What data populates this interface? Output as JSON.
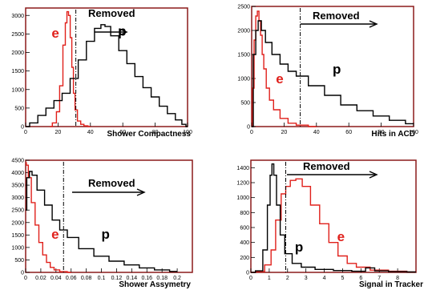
{
  "colors": {
    "frame": "#8b1a1a",
    "electron": "#e0201b",
    "proton": "#000000"
  },
  "chart_data": [
    {
      "type": "histogram",
      "xlabel": "Shower Compactness",
      "xlim": [
        0,
        100
      ],
      "ylim": [
        0,
        3200
      ],
      "xticks": [
        0,
        20,
        40,
        60,
        80,
        100
      ],
      "yticks": [
        0,
        500,
        1000,
        1500,
        2000,
        2500,
        3000
      ],
      "ytick_labels": [
        "0",
        "500",
        "1000",
        "1500",
        "2000",
        "2500",
        "3000"
      ],
      "cut": 31,
      "removed_text": "Removed",
      "series": [
        {
          "name": "e",
          "color": "#e0201b",
          "x": [
            15,
            18,
            20,
            22,
            24,
            25,
            26,
            27,
            28,
            29,
            30,
            31,
            33,
            35,
            37,
            40
          ],
          "y": [
            0,
            100,
            400,
            1100,
            2200,
            2800,
            3100,
            3000,
            2400,
            1600,
            900,
            450,
            150,
            60,
            20,
            0
          ]
        },
        {
          "name": "p",
          "color": "#000000",
          "x": [
            0,
            5,
            10,
            15,
            20,
            25,
            30,
            35,
            40,
            45,
            48,
            50,
            55,
            60,
            65,
            70,
            75,
            80,
            85,
            90,
            95,
            98,
            100
          ],
          "y": [
            0,
            100,
            300,
            500,
            700,
            900,
            1300,
            1800,
            2300,
            2650,
            2750,
            2700,
            2450,
            2050,
            1700,
            1350,
            1050,
            800,
            550,
            350,
            180,
            60,
            0
          ]
        }
      ],
      "series_labels": {
        "e": {
          "x": 16,
          "y": 2400
        },
        "p": {
          "x": 57,
          "y": 2450
        }
      }
    },
    {
      "type": "histogram",
      "xlabel": "Hits in ACD",
      "xlim": [
        0,
        100
      ],
      "ylim": [
        0,
        2500
      ],
      "xticks": [
        0,
        20,
        40,
        60,
        80,
        100
      ],
      "yticks": [
        0,
        500,
        1000,
        1500,
        2000,
        2500
      ],
      "ytick_labels": [
        "0",
        "500",
        "1000",
        "1500",
        "2000",
        "2500"
      ],
      "cut": 30,
      "removed_text": "Removed",
      "series": [
        {
          "name": "e",
          "color": "#e0201b",
          "x": [
            0,
            1,
            2,
            3,
            4,
            5,
            6,
            7,
            8,
            10,
            12,
            15,
            20,
            25,
            30,
            40
          ],
          "y": [
            0,
            800,
            1800,
            2300,
            2400,
            2200,
            1900,
            1500,
            1200,
            800,
            550,
            350,
            170,
            70,
            30,
            0
          ]
        },
        {
          "name": "p",
          "color": "#000000",
          "x": [
            0,
            2,
            3,
            5,
            7,
            10,
            15,
            20,
            25,
            30,
            40,
            50,
            60,
            70,
            80,
            90,
            100
          ],
          "y": [
            0,
            1500,
            2000,
            2200,
            2000,
            1750,
            1500,
            1300,
            1150,
            1050,
            850,
            650,
            450,
            330,
            220,
            130,
            60
          ]
        }
      ],
      "series_labels": {
        "e": {
          "x": 15,
          "y": 900
        },
        "p": {
          "x": 50,
          "y": 1100
        }
      }
    },
    {
      "type": "histogram",
      "xlabel": "Shower Assymetry",
      "xlim": [
        0,
        0.22
      ],
      "ylim": [
        0,
        4500
      ],
      "xticks": [
        0,
        0.02,
        0.04,
        0.06,
        0.08,
        0.1,
        0.12,
        0.14,
        0.16,
        0.18,
        0.2
      ],
      "yticks": [
        0,
        500,
        1000,
        1500,
        2000,
        2500,
        3000,
        3500,
        4000,
        4500
      ],
      "ytick_labels": [
        "0",
        "500",
        "1000",
        "1500",
        "2000",
        "2500",
        "3000",
        "3500",
        "4000",
        "4500"
      ],
      "cut": 0.05,
      "removed_text": "Removed",
      "series": [
        {
          "name": "e",
          "color": "#e0201b",
          "x": [
            0,
            0.002,
            0.005,
            0.01,
            0.015,
            0.02,
            0.025,
            0.03,
            0.035,
            0.04,
            0.05,
            0.06
          ],
          "y": [
            4400,
            4300,
            3800,
            2800,
            1900,
            1200,
            700,
            400,
            200,
            100,
            30,
            0
          ]
        },
        {
          "name": "p",
          "color": "#000000",
          "x": [
            0,
            0.003,
            0.007,
            0.01,
            0.02,
            0.03,
            0.04,
            0.05,
            0.06,
            0.08,
            0.1,
            0.12,
            0.14,
            0.16,
            0.18,
            0.2
          ],
          "y": [
            2500,
            3800,
            4050,
            3900,
            3300,
            2700,
            2100,
            1700,
            1400,
            950,
            650,
            450,
            300,
            180,
            100,
            40
          ]
        }
      ],
      "series_labels": {
        "e": {
          "x": 0.034,
          "y": 1350
        },
        "p": {
          "x": 0.1,
          "y": 1350
        }
      }
    },
    {
      "type": "histogram",
      "xlabel": "Signal in Tracker",
      "xlim": [
        0,
        9
      ],
      "ylim": [
        0,
        1500
      ],
      "xticks": [
        0,
        1,
        2,
        3,
        4,
        5,
        6,
        7,
        8
      ],
      "yticks": [
        0,
        200,
        400,
        600,
        800,
        1000,
        1200,
        1400
      ],
      "ytick_labels": [
        "0",
        "200",
        "400",
        "600",
        "800",
        "1000",
        "1200",
        "1400"
      ],
      "cut": 1.9,
      "removed_text": "Removed",
      "series": [
        {
          "name": "e",
          "color": "#e0201b",
          "x": [
            0,
            0.5,
            1,
            1.2,
            1.5,
            1.8,
            2,
            2.3,
            2.6,
            3,
            3.5,
            4,
            4.5,
            5,
            5.5,
            6,
            7,
            8,
            9
          ],
          "y": [
            0,
            10,
            100,
            300,
            700,
            1050,
            1150,
            1230,
            1250,
            1150,
            900,
            650,
            400,
            220,
            120,
            70,
            30,
            15,
            5
          ]
        },
        {
          "name": "p",
          "color": "#000000",
          "x": [
            0,
            0.5,
            0.8,
            1,
            1.1,
            1.2,
            1.3,
            1.5,
            1.7,
            2,
            2.5,
            3,
            4,
            5,
            6,
            6.5,
            7,
            8,
            9
          ],
          "y": [
            0,
            20,
            300,
            900,
            1300,
            1450,
            1300,
            900,
            500,
            250,
            120,
            70,
            40,
            25,
            15,
            60,
            20,
            10,
            5
          ]
        }
      ],
      "series_labels": {
        "e": {
          "x": 4.7,
          "y": 420
        },
        "p": {
          "x": 2.4,
          "y": 280
        }
      }
    }
  ]
}
